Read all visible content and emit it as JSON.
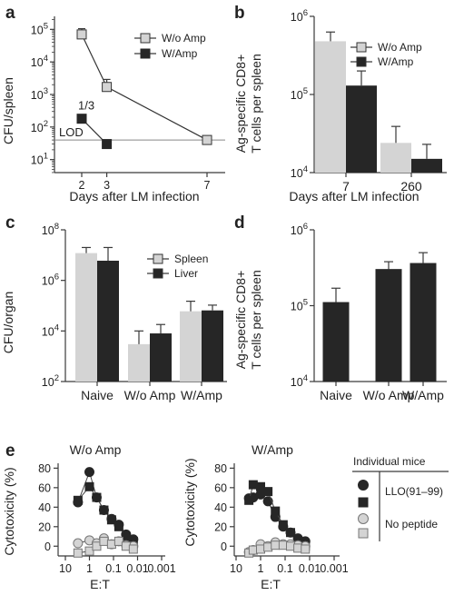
{
  "colors": {
    "light": "#d4d4d4",
    "dark": "#262626",
    "axis": "#3a3a3a",
    "lod": "#888888"
  },
  "chart_data": [
    {
      "panel": "a",
      "type": "line",
      "ylog": true,
      "xlabel": "Days after LM infection",
      "ylabel": "CFU/spleen",
      "xticks": [
        "2",
        "3",
        "7"
      ],
      "yticks": [
        "10^1",
        "10^2",
        "10^3",
        "10^4",
        "10^5"
      ],
      "ylim_exp": [
        0.6,
        5.4
      ],
      "series": [
        {
          "name": "W/o Amp",
          "x": [
            2,
            3,
            7
          ],
          "y": [
            70000,
            1700,
            40
          ],
          "err": [
            35000,
            1200,
            0
          ]
        },
        {
          "name": "W/Amp",
          "x": [
            2,
            3
          ],
          "y": [
            180,
            30
          ],
          "err": [
            0,
            0
          ]
        }
      ],
      "lod": {
        "label": "LOD",
        "value": 40
      },
      "annotation": "1/3",
      "legend": "top-right"
    },
    {
      "panel": "b",
      "type": "bar",
      "ylog": true,
      "xlabel": "Days after LM infection",
      "ylabel_line1": "Ag-specific CD8+",
      "ylabel_line2": "T cells per spleen",
      "categories": [
        "7",
        "260"
      ],
      "yticks": [
        "10^4",
        "10^5",
        "10^6"
      ],
      "ylim_exp": [
        4,
        6
      ],
      "series": [
        {
          "name": "W/o Amp",
          "values": [
            480000,
            24000
          ],
          "err": [
            150000,
            15000
          ]
        },
        {
          "name": "W/Amp",
          "values": [
            130000,
            15000
          ],
          "err": [
            70000,
            8000
          ]
        }
      ],
      "legend": "top-right"
    },
    {
      "panel": "c",
      "type": "bar",
      "ylog": true,
      "xlabel": "",
      "ylabel": "CFU/organ",
      "categories": [
        "Naive",
        "W/o Amp",
        "W/Amp"
      ],
      "yticks": [
        "10^2",
        "10^4",
        "10^6",
        "10^8"
      ],
      "ylim_exp": [
        2,
        8
      ],
      "series": [
        {
          "name": "Spleen",
          "values": [
            12000000,
            3000,
            60000
          ],
          "err": [
            8000000,
            7000,
            90000
          ]
        },
        {
          "name": "Liver",
          "values": [
            6000000,
            8000,
            65000
          ],
          "err": [
            14000000,
            10000,
            40000
          ]
        }
      ],
      "legend": "top-right"
    },
    {
      "panel": "d",
      "type": "bar",
      "ylog": true,
      "xlabel": "",
      "ylabel_line1": "Ag-specific CD8+",
      "ylabel_line2": "T cells per spleen",
      "categories": [
        "Naive",
        "W/o Amp",
        "W/Amp"
      ],
      "yticks": [
        "10^4",
        "10^5",
        "10^6"
      ],
      "ylim_exp": [
        4,
        6
      ],
      "series": [
        {
          "name": "",
          "values": [
            110000,
            300000,
            360000
          ],
          "err": [
            60000,
            80000,
            140000
          ]
        }
      ]
    },
    {
      "panel": "e",
      "type": "line",
      "xlog": true,
      "xreversed": true,
      "ylabel": "Cytotoxicity (%)",
      "yticks": [
        0,
        20,
        40,
        60,
        80
      ],
      "ylim": [
        -10,
        85
      ],
      "xticks": [
        "10",
        "1",
        "0.1",
        "0.01",
        "0.001"
      ],
      "legend_title": "Individual mice",
      "legend_items": [
        "LLO(91–99)",
        "No peptide"
      ],
      "subplots": [
        {
          "title": "W/o Amp",
          "xlabel": "E:T",
          "series": [
            {
              "marker": "circle-dark",
              "x": [
                3,
                1,
                0.5,
                0.25,
                0.12,
                0.06,
                0.03,
                0.015
              ],
              "y": [
                45,
                76,
                50,
                37,
                28,
                22,
                12,
                7
              ]
            },
            {
              "marker": "square-dark",
              "x": [
                3,
                1,
                0.5,
                0.25,
                0.12,
                0.06,
                0.03,
                0.015
              ],
              "y": [
                47,
                61,
                50,
                37,
                27,
                20,
                10,
                5
              ]
            },
            {
              "marker": "circle-light",
              "x": [
                3,
                1,
                0.5,
                0.25,
                0.12,
                0.06,
                0.03,
                0.015
              ],
              "y": [
                3,
                6,
                3,
                8,
                2,
                5,
                1,
                0
              ]
            },
            {
              "marker": "square-light",
              "x": [
                3,
                1,
                0.5,
                0.25,
                0.12,
                0.06,
                0.03,
                0.015
              ],
              "y": [
                -7,
                -5,
                0,
                5,
                2,
                5,
                0,
                -3
              ]
            }
          ]
        },
        {
          "title": "W/Amp",
          "xlabel": "E:T",
          "series": [
            {
              "marker": "circle-dark",
              "x": [
                3,
                2,
                1,
                0.5,
                0.25,
                0.12,
                0.06,
                0.03,
                0.015
              ],
              "y": [
                49,
                50,
                53,
                46,
                30,
                20,
                14,
                8,
                5
              ]
            },
            {
              "marker": "square-dark",
              "x": [
                3,
                2,
                1,
                0.5,
                0.25,
                0.12,
                0.06,
                0.03,
                0.015
              ],
              "y": [
                47,
                63,
                61,
                56,
                36,
                22,
                14,
                5,
                0
              ]
            },
            {
              "marker": "circle-light",
              "x": [
                3,
                2,
                1,
                0.5,
                0.25,
                0.12,
                0.06,
                0.03,
                0.015
              ],
              "y": [
                -6,
                -4,
                2,
                0,
                4,
                2,
                2,
                1,
                0
              ]
            },
            {
              "marker": "square-light",
              "x": [
                3,
                2,
                1,
                0.5,
                0.25,
                0.12,
                0.06,
                0.03,
                0.015
              ],
              "y": [
                -7,
                -4,
                -3,
                -1,
                1,
                1,
                0,
                -2,
                -3
              ]
            }
          ]
        }
      ]
    }
  ]
}
